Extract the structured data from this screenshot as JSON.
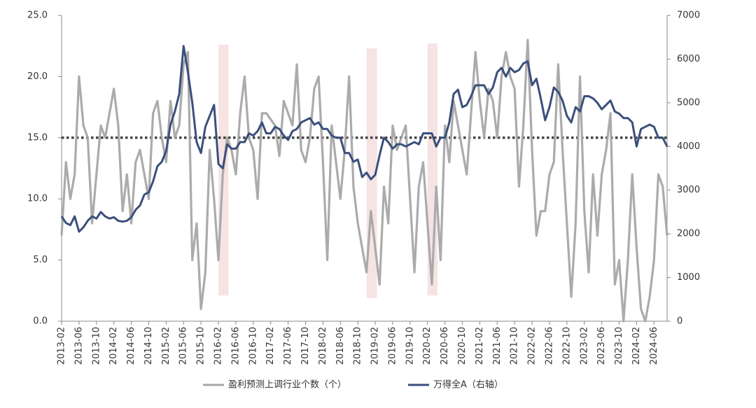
{
  "chart_data": {
    "type": "line",
    "categories": [
      "2013-02",
      null,
      null,
      null,
      "2013-06",
      null,
      null,
      null,
      "2013-10",
      null,
      null,
      null,
      "2014-02",
      null,
      null,
      null,
      "2014-06",
      null,
      null,
      null,
      "2014-10",
      null,
      null,
      null,
      "2015-02",
      null,
      null,
      null,
      "2015-06",
      null,
      null,
      null,
      "2015-10",
      null,
      null,
      null,
      "2016-02",
      null,
      null,
      null,
      "2016-06",
      null,
      null,
      null,
      "2016-10",
      null,
      null,
      null,
      "2017-02",
      null,
      null,
      null,
      "2017-06",
      null,
      null,
      null,
      "2017-10",
      null,
      null,
      null,
      "2018-02",
      null,
      null,
      null,
      "2018-06",
      null,
      null,
      null,
      "2018-10",
      null,
      null,
      null,
      "2019-02",
      null,
      null,
      null,
      "2019-06",
      null,
      null,
      null,
      "2019-10",
      null,
      null,
      null,
      "2020-02",
      null,
      null,
      null,
      "2020-06",
      null,
      null,
      null,
      "2020-10",
      null,
      null,
      null,
      "2021-02",
      null,
      null,
      null,
      "2021-06",
      null,
      null,
      null,
      "2021-10",
      null,
      null,
      null,
      "2022-02",
      null,
      null,
      null,
      "2022-06",
      null,
      null,
      null,
      "2022-10",
      null,
      null,
      null,
      "2023-02",
      null,
      null,
      null,
      "2023-06",
      null,
      null,
      null,
      "2023-10",
      null,
      null,
      null,
      "2024-02",
      null,
      null,
      null,
      "2024-06",
      null,
      null,
      null
    ],
    "series": [
      {
        "name": "盈利预测上调行业个数（个）",
        "color": "#a6a6a6",
        "axis": "y",
        "values": [
          7,
          13,
          10,
          12,
          20,
          16,
          15,
          8,
          12,
          16,
          15,
          17,
          19,
          16,
          9,
          12,
          8,
          13,
          14,
          12,
          10,
          17,
          18,
          15,
          13,
          18,
          15,
          16,
          21,
          22,
          5,
          8,
          1,
          4,
          14,
          10,
          5,
          12,
          15,
          14,
          12,
          17,
          20,
          15,
          14,
          10,
          17,
          17,
          16.5,
          16,
          13.5,
          18,
          17,
          16,
          21,
          14,
          13,
          15,
          19,
          20,
          13,
          5,
          16,
          13,
          10,
          14,
          20,
          11,
          8,
          6,
          4,
          9,
          6,
          3,
          11,
          8,
          16,
          14,
          15,
          16,
          10,
          4,
          11,
          13,
          8,
          3,
          11,
          5,
          16,
          13,
          18,
          16,
          14,
          12,
          17,
          22,
          18,
          15,
          19,
          18,
          15,
          20,
          22,
          20,
          19,
          11,
          16,
          23,
          14,
          7,
          9,
          9,
          12,
          13,
          21,
          14,
          8,
          2,
          8,
          20,
          9,
          4,
          12,
          7,
          12,
          14,
          17,
          3,
          5,
          0,
          5,
          12,
          6,
          1,
          0,
          2,
          5,
          12,
          11,
          7
        ]
      },
      {
        "name": "万得全A（右轴）",
        "color": "#3b4f7c",
        "axis": "y2",
        "values": [
          2400,
          2250,
          2200,
          2400,
          2050,
          2150,
          2300,
          2400,
          2350,
          2500,
          2400,
          2350,
          2380,
          2300,
          2280,
          2300,
          2380,
          2550,
          2650,
          2900,
          2950,
          3200,
          3550,
          3650,
          3900,
          4500,
          4800,
          5200,
          6300,
          5700,
          5000,
          4100,
          3850,
          4450,
          4700,
          4950,
          3600,
          3500,
          4050,
          3950,
          3950,
          4100,
          4100,
          4300,
          4250,
          4350,
          4550,
          4300,
          4300,
          4450,
          4400,
          4250,
          4150,
          4350,
          4400,
          4550,
          4600,
          4650,
          4500,
          4550,
          4400,
          4400,
          4250,
          4200,
          4200,
          3850,
          3850,
          3650,
          3700,
          3300,
          3400,
          3250,
          3350,
          3800,
          4200,
          4100,
          3950,
          4050,
          4050,
          4000,
          4050,
          4100,
          4050,
          4300,
          4300,
          4300,
          4000,
          4200,
          4200,
          4550,
          5200,
          5300,
          4900,
          4950,
          5150,
          5400,
          5400,
          5400,
          5200,
          5350,
          5700,
          5800,
          5600,
          5800,
          5700,
          5750,
          5900,
          5950,
          5400,
          5550,
          5100,
          4600,
          4900,
          5350,
          5250,
          5050,
          4700,
          4550,
          4900,
          4800,
          5150,
          5150,
          5100,
          5000,
          4850,
          4950,
          5050,
          4800,
          4750,
          4650,
          4650,
          4550,
          4000,
          4400,
          4450,
          4500,
          4450,
          4200,
          4200,
          4000
        ]
      }
    ],
    "ylim": [
      0,
      25
    ],
    "yticks": [
      {
        "value": 0,
        "label": "0.0"
      },
      {
        "value": 5,
        "label": "5.0"
      },
      {
        "value": 10,
        "label": "10.0"
      },
      {
        "value": 15,
        "label": "15.0"
      },
      {
        "value": 20,
        "label": "20.0"
      },
      {
        "value": 25,
        "label": "25.0"
      }
    ],
    "y2lim": [
      0,
      7000
    ],
    "y2ticks": [
      0,
      1000,
      2000,
      3000,
      4000,
      5000,
      6000,
      7000
    ],
    "reference_line": 15,
    "bands": [
      {
        "x": [
          36,
          38.3
        ],
        "y": [
          2.1,
          22.6
        ]
      },
      {
        "x": [
          70,
          72.4
        ],
        "y": [
          1.9,
          22.3
        ]
      },
      {
        "x": [
          84,
          86.3
        ],
        "y": [
          2.1,
          22.7
        ]
      }
    ],
    "legend": "bottom"
  }
}
